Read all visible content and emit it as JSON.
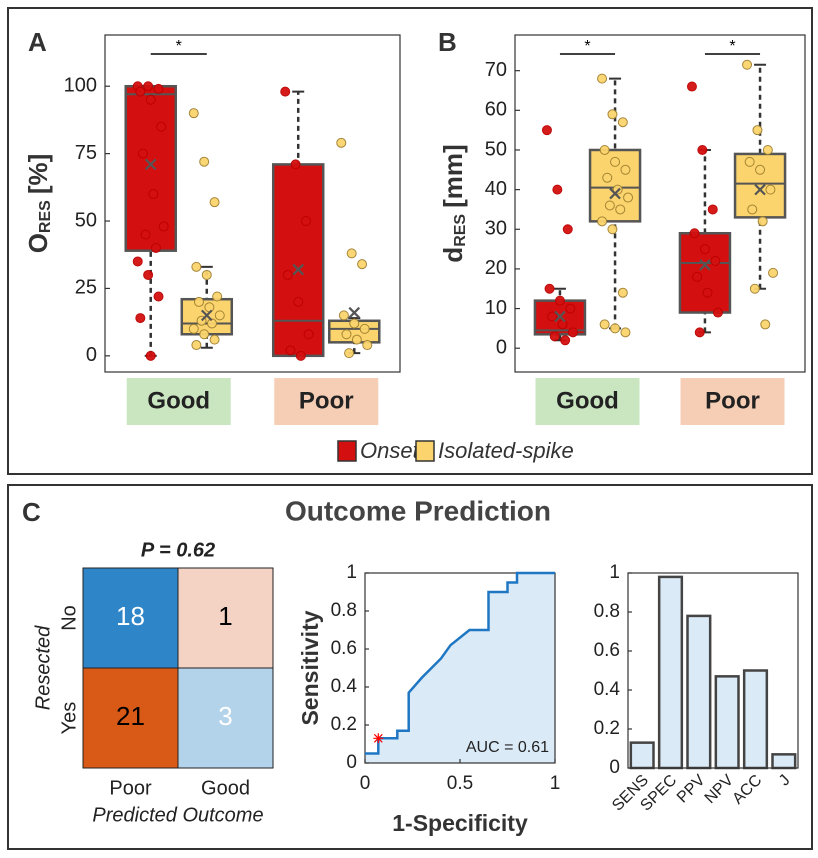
{
  "legend": [
    {
      "name": "Onset",
      "color": "#d40f0f"
    },
    {
      "name": "Isolated-spike",
      "color": "#fbd46d"
    }
  ],
  "chart_data": [
    {
      "type": "box",
      "panel": "A",
      "ylabel": {
        "main": "O",
        "sub": "RES",
        "unit": "[%]"
      },
      "categories": [
        "Good",
        "Poor"
      ],
      "category_colors": [
        "#c9e6c0",
        "#f6cdb5"
      ],
      "significance": [
        "*",
        null
      ],
      "ylim": [
        -6,
        119
      ],
      "yticks": [
        0,
        25,
        50,
        75,
        100
      ],
      "series": [
        {
          "boxes": [
            {
              "whislo": 0,
              "q1": 39,
              "med": 97,
              "q3": 100,
              "whishi": 100,
              "mean": 71,
              "points": [
                100,
                100,
                99,
                98,
                95,
                85,
                75,
                60,
                48,
                45,
                40,
                35,
                30,
                22,
                14,
                0
              ]
            },
            {
              "whislo": 0,
              "q1": 0,
              "med": 13,
              "q3": 71,
              "whishi": 98,
              "mean": 32,
              "points": [
                98,
                71,
                50,
                30,
                20,
                8,
                2,
                0
              ]
            }
          ]
        },
        {
          "boxes": [
            {
              "whislo": 3,
              "q1": 8,
              "med": 12,
              "q3": 21,
              "whishi": 33,
              "mean": 15,
              "points": [
                90,
                72,
                57,
                33,
                30,
                22,
                20,
                18,
                15,
                13,
                12,
                10,
                8,
                6,
                4
              ]
            },
            {
              "whislo": 1,
              "q1": 5,
              "med": 10,
              "q3": 13,
              "whishi": 14,
              "mean": 16,
              "points": [
                79,
                38,
                34,
                15,
                12,
                10,
                8,
                6,
                4,
                1
              ]
            }
          ]
        }
      ]
    },
    {
      "type": "box",
      "panel": "B",
      "ylabel": {
        "main": "d",
        "sub": "RES",
        "unit": "[mm]"
      },
      "categories": [
        "Good",
        "Poor"
      ],
      "category_colors": [
        "#c9e6c0",
        "#f6cdb5"
      ],
      "significance": [
        "*",
        "*"
      ],
      "ylim": [
        -6,
        79
      ],
      "yticks": [
        0,
        10,
        20,
        30,
        40,
        50,
        60,
        70
      ],
      "series": [
        {
          "boxes": [
            {
              "whislo": 2,
              "q1": 3.5,
              "med": 4.5,
              "q3": 12,
              "whishi": 15,
              "mean": 8,
              "points": [
                55,
                40,
                30,
                15,
                12,
                10,
                8,
                6,
                4,
                3,
                2
              ]
            },
            {
              "whislo": 4,
              "q1": 9,
              "med": 21.5,
              "q3": 29,
              "whishi": 50,
              "mean": 21,
              "points": [
                66,
                50,
                35,
                29,
                25,
                22,
                18,
                14,
                9,
                4
              ]
            }
          ]
        },
        {
          "boxes": [
            {
              "whislo": 5,
              "q1": 32,
              "med": 40.5,
              "q3": 50,
              "whishi": 68,
              "mean": 39,
              "points": [
                68,
                59,
                57,
                50,
                47,
                45,
                43,
                40,
                38,
                36,
                35,
                32,
                30,
                14,
                6,
                5,
                4
              ]
            },
            {
              "whislo": 15,
              "q1": 33,
              "med": 41.5,
              "q3": 49,
              "whishi": 71.5,
              "mean": 40,
              "points": [
                71.5,
                55,
                50,
                47,
                45,
                40,
                35,
                32,
                19,
                15,
                6
              ]
            }
          ]
        }
      ]
    },
    {
      "type": "heatmap",
      "panel": "C",
      "title": "Outcome Prediction",
      "annotation": "P = 0.62",
      "rows": [
        "No",
        "Yes"
      ],
      "columns": [
        "Poor",
        "Good"
      ],
      "ylabel": "Resected",
      "xlabel": "Predicted Outcome",
      "values": [
        [
          18,
          1
        ],
        [
          21,
          3
        ]
      ],
      "colors": [
        [
          "#2e86c8",
          "#f4d3c4"
        ],
        [
          "#d95a16",
          "#b3d3ea"
        ]
      ],
      "text_colors": [
        [
          "#ffffff",
          "#000000"
        ],
        [
          "#000000",
          "#ffffff"
        ]
      ]
    },
    {
      "type": "line",
      "xlabel": "1-Specificity",
      "ylabel": "Sensitivity",
      "annotation": "AUC = 0.61",
      "color": "#1f77c4",
      "fill": "#dbeaf7",
      "x": [
        0,
        0.07,
        0.07,
        0.17,
        0.17,
        0.23,
        0.23,
        0.3,
        0.35,
        0.4,
        0.45,
        0.55,
        0.65,
        0.65,
        0.75,
        0.75,
        0.8,
        0.8,
        1
      ],
      "y": [
        0.05,
        0.05,
        0.13,
        0.13,
        0.17,
        0.17,
        0.37,
        0.45,
        0.5,
        0.55,
        0.62,
        0.7,
        0.7,
        0.9,
        0.9,
        0.95,
        0.95,
        1,
        1
      ],
      "marker": {
        "x": 0.07,
        "y": 0.13,
        "color": "#ff0000"
      },
      "xlim": [
        0,
        1
      ],
      "ylim": [
        0,
        1
      ],
      "xticks": [
        0,
        0.5,
        1
      ],
      "yticks": [
        0,
        0.2,
        0.4,
        0.6,
        0.8,
        1
      ]
    },
    {
      "type": "bar",
      "categories": [
        "SENS",
        "SPEC",
        "PPV",
        "NPV",
        "ACC",
        "J"
      ],
      "values": [
        0.13,
        0.98,
        0.78,
        0.47,
        0.5,
        0.07
      ],
      "color": "#dbeaf7",
      "ylim": [
        0,
        1
      ],
      "yticks": [
        0,
        0.2,
        0.4,
        0.6,
        0.8,
        1
      ]
    }
  ]
}
